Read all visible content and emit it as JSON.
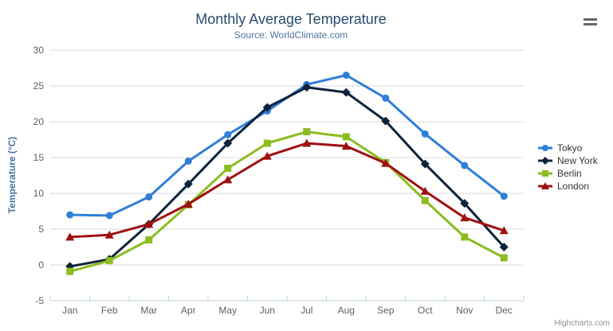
{
  "chart": {
    "title": "Monthly Average Temperature",
    "subtitle": "Source: WorldClimate.com",
    "credits": "Highcharts.com",
    "menu_icon": "hamburger-menu-icon"
  },
  "chart_data": {
    "type": "line",
    "title": "Monthly Average Temperature",
    "subtitle": "Source: WorldClimate.com",
    "categories": [
      "Jan",
      "Feb",
      "Mar",
      "Apr",
      "May",
      "Jun",
      "Jul",
      "Aug",
      "Sep",
      "Oct",
      "Nov",
      "Dec"
    ],
    "series": [
      {
        "name": "Tokyo",
        "color": "#2f7ed8",
        "marker": "circle",
        "values": [
          7.0,
          6.9,
          9.5,
          14.5,
          18.2,
          21.5,
          25.2,
          26.5,
          23.3,
          18.3,
          13.9,
          9.6
        ]
      },
      {
        "name": "New York",
        "color": "#0d233a",
        "marker": "diamond",
        "values": [
          -0.2,
          0.8,
          5.7,
          11.3,
          17.0,
          22.0,
          24.8,
          24.1,
          20.1,
          14.1,
          8.6,
          2.5
        ]
      },
      {
        "name": "Berlin",
        "color": "#8bbc21",
        "marker": "square",
        "values": [
          -0.9,
          0.6,
          3.5,
          8.4,
          13.5,
          17.0,
          18.6,
          17.9,
          14.3,
          9.0,
          3.9,
          1.0
        ]
      },
      {
        "name": "London",
        "color": "#a01010",
        "marker": "triangle",
        "values": [
          3.9,
          4.2,
          5.7,
          8.5,
          11.9,
          15.2,
          17.0,
          16.6,
          14.2,
          10.3,
          6.6,
          4.8
        ]
      }
    ],
    "xlabel": "",
    "ylabel": "Temperature (°C)",
    "ylim": [
      -5,
      30
    ],
    "ytick_interval": 5,
    "grid": true,
    "legend_position": "right"
  },
  "colors": {
    "title": "#274b6d",
    "subtitle": "#4d759e",
    "axis_label": "#606060",
    "y_axis_title": "#4572a7",
    "grid_line": "#d8d8d8",
    "axis_line": "#c0d0e0",
    "legend_text": "#333333",
    "credits": "#909090",
    "menu_icon": "#666666"
  }
}
